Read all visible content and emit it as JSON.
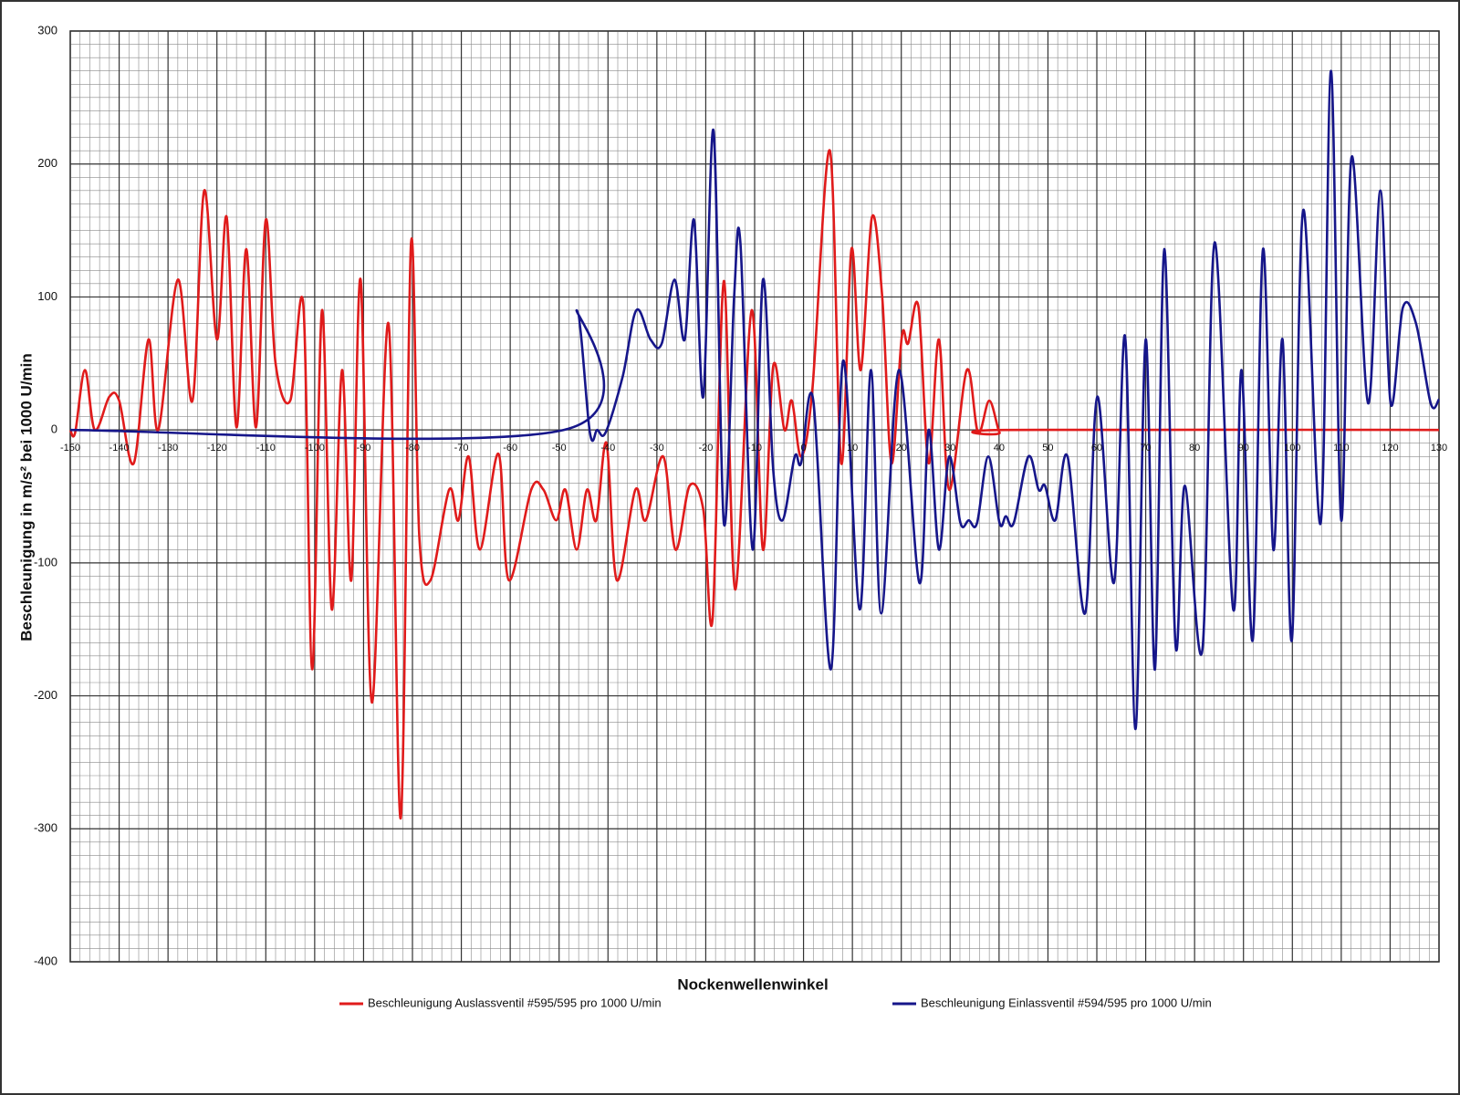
{
  "chart_data": {
    "type": "line",
    "x_label": "Nockenwellenwinkel",
    "y_label": "Beschleunigung in m/s² bei 1000 U/min",
    "xlim": [
      -150,
      130
    ],
    "xticks": [
      -150,
      -140,
      -130,
      -120,
      -110,
      -100,
      -90,
      -80,
      -70,
      -60,
      -50,
      -40,
      -30,
      -20,
      -10,
      0,
      10,
      20,
      30,
      40,
      50,
      60,
      70,
      80,
      90,
      100,
      110,
      120,
      130
    ],
    "ylim": [
      -400,
      300
    ],
    "yticks": [
      -400,
      -300,
      -200,
      -100,
      0,
      100,
      200,
      300
    ],
    "grid": true,
    "legend": "bottom",
    "series": [
      {
        "name": "Beschleunigung Auslassventil #595/595 pro 1000 U/min",
        "color": "#e01b1b",
        "x": [
          -150,
          -149,
          -147,
          -145,
          -142,
          -140,
          -137,
          -134,
          -132,
          -128,
          -125,
          -122.6,
          -120,
          -118,
          -116,
          -114,
          -112,
          -110,
          -108,
          -105,
          -102.3,
          -100.5,
          -98.5,
          -96.5,
          -94.4,
          -92.5,
          -90.6,
          -88.3,
          -84.9,
          -82.4,
          -80.3,
          -78.6,
          -76.3,
          -72.5,
          -70.6,
          -68.5,
          -66.2,
          -62.4,
          -60.3,
          -55.7,
          -53.2,
          -50.6,
          -48.7,
          -46.4,
          -44.3,
          -42.4,
          -40.3,
          -38.2,
          -34.4,
          -32.3,
          -28.7,
          -26.2,
          -23.3,
          -20.5,
          -18.6,
          -16.3,
          -14,
          -10.6,
          -8.3,
          -6.2,
          -3.9,
          -2.4,
          -0.5,
          1.8,
          5.4,
          7.7,
          9.8,
          11.7,
          14,
          16.1,
          18,
          20.1,
          21.4,
          23.5,
          25.6,
          27.7,
          29.8,
          33.4,
          35.7,
          38,
          40.1,
          41.4,
          130
        ],
        "values": [
          0,
          -2,
          45,
          0,
          25,
          22,
          -25,
          68,
          0,
          113,
          22,
          180,
          68,
          160,
          2,
          136,
          2,
          158,
          50,
          22,
          93,
          -180,
          90,
          -135,
          45,
          -113,
          113,
          -205,
          80,
          -292,
          140,
          -80,
          -113,
          -45,
          -68,
          -20,
          -90,
          -18,
          -113,
          -45,
          -45,
          -68,
          -45,
          -90,
          -45,
          -68,
          -10,
          -113,
          -45,
          -68,
          -20,
          -90,
          -42,
          -60,
          -142,
          112,
          -120,
          90,
          -90,
          48,
          0,
          22,
          -20,
          30,
          210,
          -25,
          136,
          45,
          160,
          100,
          -25,
          70,
          65,
          93,
          -25,
          68,
          -45,
          45,
          -2,
          22,
          -2,
          0,
          0
        ]
      },
      {
        "name": "Beschleunigung Einlassventil #594/595 pro 1000 U/min",
        "color": "#16168a",
        "x": [
          -150,
          -49,
          -46.4,
          -43.7,
          -42.2,
          -40.5,
          -37,
          -34.2,
          -31.3,
          -29,
          -26.4,
          -24.3,
          -22.4,
          -20.5,
          -18.4,
          -16.3,
          -14.2,
          -12.9,
          -10.4,
          -8.3,
          -6.2,
          -4.3,
          -1.8,
          -0.5,
          2,
          5.6,
          8.1,
          11.5,
          13.8,
          15.9,
          19.5,
          23.7,
          25.6,
          27.7,
          29.8,
          32.1,
          33.8,
          35.5,
          37.8,
          40.1,
          41.4,
          43,
          46,
          48.1,
          49.4,
          51.5,
          54,
          57.6,
          60.1,
          63.5,
          65.8,
          67.9,
          70,
          71.9,
          73.8,
          76.1,
          78,
          81.6,
          84.1,
          87.9,
          89.6,
          91.9,
          94,
          96.1,
          98,
          99.9,
          102.2,
          105.8,
          107.9,
          110,
          112.1,
          115.5,
          118,
          120.1,
          122.6,
          125.3,
          128.3,
          130
        ],
        "values": [
          0,
          0,
          90,
          -2,
          0,
          -2,
          40,
          90,
          68,
          65,
          113,
          68,
          158,
          25,
          225,
          -70,
          100,
          140,
          -90,
          113,
          -30,
          -68,
          -20,
          -25,
          22,
          -180,
          52,
          -135,
          45,
          -138,
          45,
          -115,
          0,
          -90,
          -20,
          -70,
          -68,
          -70,
          -20,
          -70,
          -65,
          -70,
          -20,
          -45,
          -42,
          -68,
          -20,
          -138,
          25,
          -115,
          70,
          -225,
          68,
          -180,
          136,
          -162,
          -42,
          -165,
          141,
          -135,
          45,
          -158,
          136,
          -90,
          68,
          -158,
          165,
          -70,
          270,
          -68,
          205,
          20,
          180,
          20,
          92,
          80,
          20,
          23
        ]
      }
    ]
  }
}
